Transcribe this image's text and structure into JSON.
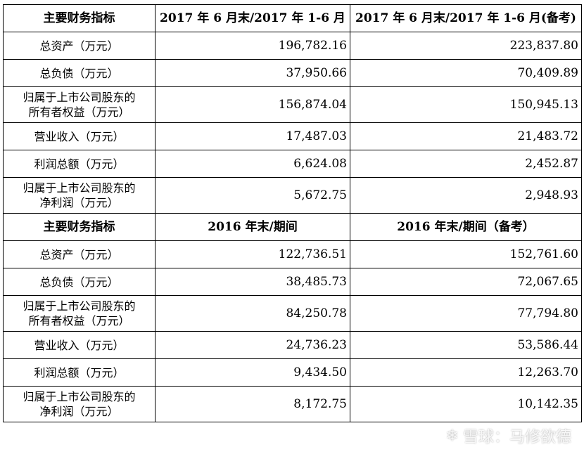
{
  "sections": [
    {
      "header": [
        "主要财务指标",
        "2017 年 6 月末/2017 年 1-6 月",
        "2017 年 6 月末/2017 年 1-6 月(备考)"
      ],
      "rows": [
        {
          "label": [
            "总资产（万元）"
          ],
          "v1": "196,782.16",
          "v2": "223,837.80"
        },
        {
          "label": [
            "总负债（万元）"
          ],
          "v1": "37,950.66",
          "v2": "70,409.89"
        },
        {
          "label": [
            "归属于上市公司股东的",
            "所有者权益（万元）"
          ],
          "v1": "156,874.04",
          "v2": "150,945.13"
        },
        {
          "label": [
            "营业收入（万元）"
          ],
          "v1": "17,487.03",
          "v2": "21,483.72"
        },
        {
          "label": [
            "利润总额（万元）"
          ],
          "v1": "6,624.08",
          "v2": "2,452.87"
        },
        {
          "label": [
            "归属于上市公司股东的",
            "净利润（万元）"
          ],
          "v1": "5,672.75",
          "v2": "2,948.93"
        }
      ]
    },
    {
      "header": [
        "主要财务指标",
        "2016 年末/期间",
        "2016 年末/期间（备考）"
      ],
      "rows": [
        {
          "label": [
            "总资产（万元）"
          ],
          "v1": "122,736.51",
          "v2": "152,761.60"
        },
        {
          "label": [
            "总负债（万元）"
          ],
          "v1": "38,485.73",
          "v2": "72,067.65"
        },
        {
          "label": [
            "归属于上市公司股东的",
            "所有者权益（万元）"
          ],
          "v1": "84,250.78",
          "v2": "77,794.80"
        },
        {
          "label": [
            "营业收入（万元）"
          ],
          "v1": "24,736.23",
          "v2": "53,586.44"
        },
        {
          "label": [
            "利润总额（万元）"
          ],
          "v1": "9,434.50",
          "v2": "12,263.70"
        },
        {
          "label": [
            "归属于上市公司股东的",
            "净利润（万元）"
          ],
          "v1": "8,172.75",
          "v2": "10,142.35"
        }
      ]
    }
  ],
  "watermark": {
    "icon": "snowball-logo-icon",
    "text": "雪球：马修欲德"
  }
}
